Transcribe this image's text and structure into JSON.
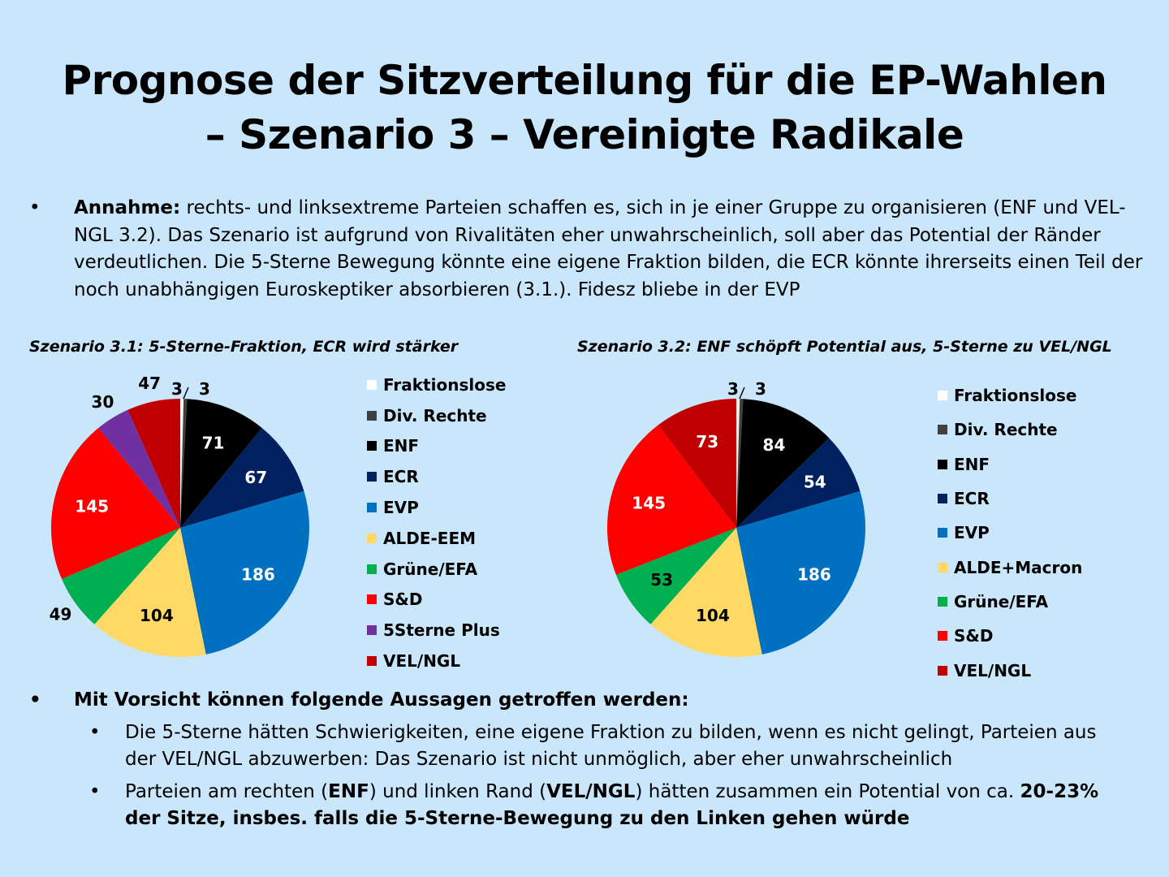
{
  "title": {
    "line1": "Prognose der Sitzverteilung für die EP-Wahlen",
    "line2": "– Szenario 3 – Vereinigte Radikale"
  },
  "intro": {
    "bullet": "•",
    "bold": "Annahme:",
    "text": " rechts- und linksextreme Parteien schaffen es, sich in je einer Gruppe zu organisieren (ENF und VEL-NGL 3.2). Das Szenario ist aufgrund von Rivalitäten eher unwahrscheinlich, soll aber das Potential der Ränder verdeutlichen. Die 5-Sterne Bewegung könnte eine eigene Fraktion bilden, die ECR könnte ihrerseits einen Teil der noch unabhängigen Euroskeptiker absorbieren (3.1.). Fidesz bliebe in der EVP"
  },
  "chart_data": [
    {
      "type": "pie",
      "title": "Szenario 3.1: 5-Sterne-Fraktion, ECR wird stärker",
      "categories": [
        "Fraktionslose",
        "Div. Rechte",
        "ENF",
        "ECR",
        "EVP",
        "ALDE-EEM",
        "Grüne/EFA",
        "S&D",
        "5Sterne Plus",
        "VEL/NGL"
      ],
      "values": [
        3,
        3,
        71,
        67,
        186,
        104,
        49,
        145,
        30,
        47
      ],
      "colors": [
        "#f2f2f2",
        "#404040",
        "#000000",
        "#002060",
        "#0070c0",
        "#ffd966",
        "#00b050",
        "#ff0000",
        "#7030a0",
        "#c00000"
      ],
      "legend": "right"
    },
    {
      "type": "pie",
      "title": "Szenario 3.2: ENF schöpft Potential aus, 5-Sterne zu VEL/NGL",
      "categories": [
        "Fraktionslose",
        "Div. Rechte",
        "ENF",
        "ECR",
        "EVP",
        "ALDE+Macron",
        "Grüne/EFA",
        "S&D",
        "VEL/NGL"
      ],
      "values": [
        3,
        3,
        84,
        54,
        186,
        104,
        53,
        145,
        73
      ],
      "colors": [
        "#f2f2f2",
        "#404040",
        "#000000",
        "#002060",
        "#0070c0",
        "#ffd966",
        "#00b050",
        "#ff0000",
        "#c00000"
      ],
      "legend": "right"
    }
  ],
  "conclusions": {
    "bullet": "•",
    "heading": "Mit Vorsicht können folgende Aussagen getroffen werden:",
    "items": [
      {
        "bullet": "•",
        "text": "Die 5-Sterne hätten Schwierigkeiten, eine eigene Fraktion zu bilden, wenn es nicht gelingt, Parteien aus der VEL/NGL abzuwerben: Das Szenario ist nicht unmöglich, aber eher unwahrscheinlich"
      },
      {
        "bullet": "•",
        "t1": "Parteien am rechten (",
        "b1": "ENF",
        "t2": ") und linken Rand (",
        "b2": "VEL/NGL",
        "t3": ") hätten zusammen ein Potential von ca. ",
        "b3": "20-23% der Sitze, insbes. falls die 5-Sterne-Bewegung zu den Linken gehen würde"
      }
    ]
  }
}
